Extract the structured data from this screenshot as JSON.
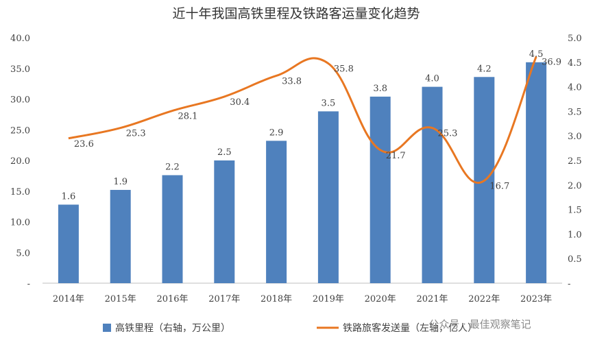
{
  "watermark": "公众号 · 最佳观察笔记",
  "colors": {
    "bar": "#4f81bd",
    "line": "#e87722",
    "axis": "#bfbfbf",
    "text": "#404040"
  },
  "chart_data": {
    "type": "bar+line",
    "title": "近十年我国高铁里程及铁路客运量变化趋势",
    "categories": [
      "2014年",
      "2015年",
      "2016年",
      "2017年",
      "2018年",
      "2019年",
      "2020年",
      "2021年",
      "2022年",
      "2023年"
    ],
    "series": [
      {
        "name": "高铁里程（右轴，万公里）",
        "type": "bar",
        "axis": "right",
        "values": [
          1.6,
          1.9,
          2.2,
          2.5,
          2.9,
          3.5,
          3.8,
          4.0,
          4.2,
          4.5
        ]
      },
      {
        "name": "铁路旅客发送量（左轴，亿人）",
        "type": "line",
        "axis": "left",
        "smooth": true,
        "values": [
          23.6,
          25.3,
          28.1,
          30.4,
          33.8,
          35.8,
          21.7,
          25.3,
          16.7,
          36.9
        ]
      }
    ],
    "left_axis": {
      "min": 0,
      "max": 40,
      "ticks": [
        "-",
        "5.0",
        "10.0",
        "15.0",
        "20.0",
        "25.0",
        "30.0",
        "35.0",
        "40.0"
      ]
    },
    "right_axis": {
      "min": 0,
      "max": 5,
      "ticks": [
        "-",
        "0.5",
        "1.0",
        "1.5",
        "2.0",
        "2.5",
        "3.0",
        "3.5",
        "4.0",
        "4.5",
        "5.0"
      ]
    },
    "legend_position": "bottom",
    "grid": false
  }
}
